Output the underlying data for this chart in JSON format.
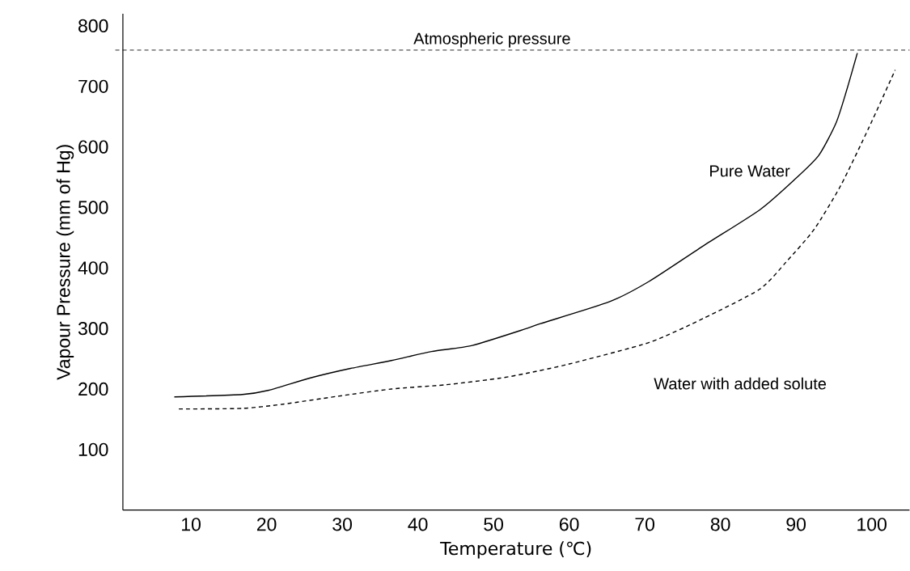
{
  "chart_data": {
    "type": "line",
    "xlabel": "Temperature (℃)",
    "ylabel": "Vapour Pressure (mm of Hg)",
    "xlim": [
      1,
      105
    ],
    "ylim": [
      0,
      820
    ],
    "xticks": [
      10,
      20,
      30,
      40,
      50,
      60,
      70,
      80,
      90,
      100
    ],
    "yticks": [
      100,
      200,
      300,
      400,
      500,
      600,
      700,
      800
    ],
    "grid": false,
    "legend": false,
    "marker": "none",
    "ref_lines": [
      {
        "axis": "y",
        "value": 760,
        "label": "Atmospheric pressure",
        "line_style": "dashed",
        "color": "#000000"
      }
    ],
    "series": [
      {
        "name": "Pure Water",
        "color": "#000000",
        "line_style": "solid",
        "x": [
          7.8,
          16.8,
          20.3,
          25.7,
          31.1,
          36.5,
          41.8,
          47.2,
          54.4,
          56.2,
          65.3,
          70.6,
          77.8,
          85.2,
          89.8,
          93.0,
          95.3,
          96.7,
          98.1
        ],
        "values": [
          187,
          191,
          198,
          218,
          234,
          247,
          262,
          272,
          300,
          308,
          344,
          378,
          437,
          496,
          546,
          586,
          640,
          694,
          755
        ]
      },
      {
        "name": "Water with added solute",
        "color": "#000000",
        "line_style": "dashed",
        "x": [
          8.4,
          16.8,
          22.2,
          29.4,
          36.5,
          43.7,
          50.9,
          54.4,
          59.9,
          70.6,
          77.8,
          85.2,
          88.7,
          92.4,
          95.9,
          99.6,
          103.1
        ],
        "values": [
          167,
          168,
          175,
          188,
          200,
          207,
          218,
          226,
          241,
          277,
          317,
          365,
          410,
          464,
          536,
          631,
          727
        ]
      }
    ]
  }
}
